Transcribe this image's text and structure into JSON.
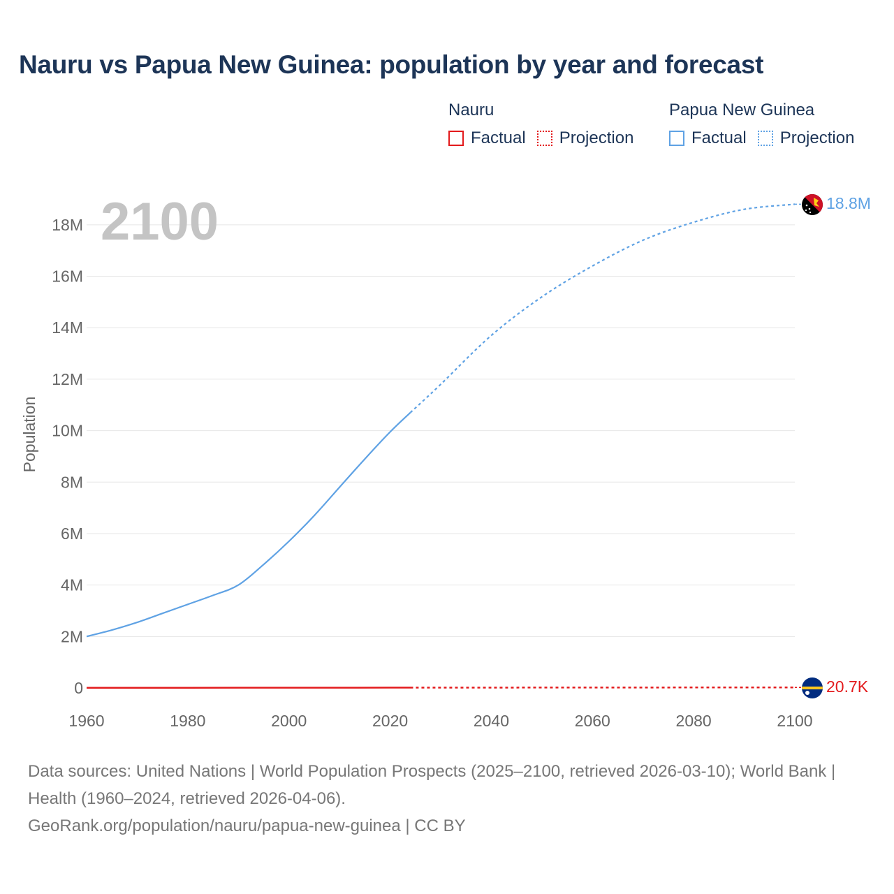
{
  "title": "Nauru vs Papua New Guinea: population by year and forecast",
  "legend": {
    "groups": [
      {
        "name": "Nauru",
        "color": "#e31a1c",
        "factual_label": "Factual",
        "projection_label": "Projection"
      },
      {
        "name": "Papua New Guinea",
        "color": "#5fa2e4",
        "factual_label": "Factual",
        "projection_label": "Projection"
      }
    ]
  },
  "year_overlay": "2100",
  "footer": {
    "sources": "Data sources: United Nations | World Population Prospects (2025–2100, retrieved 2026-03-10); World Bank | Health (1960–2024, retrieved 2026-04-06).",
    "attribution": "GeoRank.org/population/nauru/papua-new-guinea | CC BY"
  },
  "chart_data": {
    "type": "line",
    "title": "Nauru vs Papua New Guinea: population by year and forecast",
    "xlabel": "",
    "ylabel": "Population",
    "xlim": [
      1960,
      2100
    ],
    "ylim": [
      0,
      19000000
    ],
    "x_ticks": [
      1960,
      1980,
      2000,
      2020,
      2040,
      2060,
      2080,
      2100
    ],
    "y_ticks": [
      0,
      2000000,
      4000000,
      6000000,
      8000000,
      10000000,
      12000000,
      14000000,
      16000000,
      18000000
    ],
    "y_tick_labels": [
      "0",
      "2M",
      "4M",
      "6M",
      "8M",
      "10M",
      "12M",
      "14M",
      "16M",
      "18M"
    ],
    "grid": true,
    "projection_start_year": 2024,
    "series": [
      {
        "name": "Papua New Guinea",
        "color": "#5fa2e4",
        "flag_icon": "papua-new-guinea-flag-icon",
        "end_label": "18.8M",
        "factual": {
          "x": [
            1960,
            1965,
            1970,
            1975,
            1980,
            1985,
            1990,
            1995,
            2000,
            2005,
            2010,
            2015,
            2020,
            2024
          ],
          "y": [
            2000000,
            2250000,
            2550000,
            2900000,
            3250000,
            3600000,
            4000000,
            4800000,
            5700000,
            6700000,
            7800000,
            8900000,
            9950000,
            10700000
          ]
        },
        "projection": {
          "x": [
            2024,
            2030,
            2040,
            2050,
            2060,
            2070,
            2080,
            2090,
            2100
          ],
          "y": [
            10700000,
            11800000,
            13700000,
            15200000,
            16400000,
            17400000,
            18100000,
            18600000,
            18800000
          ]
        }
      },
      {
        "name": "Nauru",
        "color": "#e31a1c",
        "flag_icon": "nauru-flag-icon",
        "end_label": "20.7K",
        "factual": {
          "x": [
            1960,
            1970,
            1980,
            1990,
            2000,
            2010,
            2020,
            2024
          ],
          "y": [
            4400,
            6700,
            7600,
            9600,
            10400,
            10200,
            12300,
            12700
          ]
        },
        "projection": {
          "x": [
            2024,
            2040,
            2060,
            2080,
            2100
          ],
          "y": [
            12700,
            14500,
            16800,
            18900,
            20700
          ]
        }
      }
    ]
  }
}
